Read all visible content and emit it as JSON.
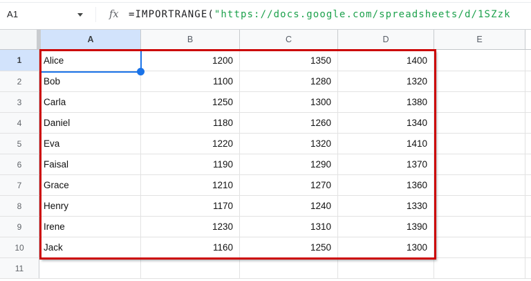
{
  "formula_bar": {
    "cell_reference": "A1",
    "fx_label": "fx",
    "formula_prefix": "=IMPORTRANGE(",
    "formula_string": "\"https://docs.google.com/spreadsheets/d/1SZzk"
  },
  "grid": {
    "column_headers": [
      "A",
      "B",
      "C",
      "D",
      "E"
    ],
    "selected_column": "A",
    "selected_row": "1",
    "selected_cell": "A1",
    "rows": [
      {
        "n": "1",
        "a": "Alice",
        "b": "1200",
        "c": "1350",
        "d": "1400"
      },
      {
        "n": "2",
        "a": "Bob",
        "b": "1100",
        "c": "1280",
        "d": "1320"
      },
      {
        "n": "3",
        "a": "Carla",
        "b": "1250",
        "c": "1300",
        "d": "1380"
      },
      {
        "n": "4",
        "a": "Daniel",
        "b": "1180",
        "c": "1260",
        "d": "1340"
      },
      {
        "n": "5",
        "a": "Eva",
        "b": "1220",
        "c": "1320",
        "d": "1410"
      },
      {
        "n": "6",
        "a": "Faisal",
        "b": "1190",
        "c": "1290",
        "d": "1370"
      },
      {
        "n": "7",
        "a": "Grace",
        "b": "1210",
        "c": "1270",
        "d": "1360"
      },
      {
        "n": "8",
        "a": "Henry",
        "b": "1170",
        "c": "1240",
        "d": "1330"
      },
      {
        "n": "9",
        "a": "Irene",
        "b": "1230",
        "c": "1310",
        "d": "1390"
      },
      {
        "n": "10",
        "a": "Jack",
        "b": "1160",
        "c": "1250",
        "d": "1300"
      },
      {
        "n": "11",
        "a": "",
        "b": "",
        "c": "",
        "d": ""
      }
    ]
  },
  "colors": {
    "range_border_red": "#cc0000",
    "selection_blue": "#1a73e8",
    "selected_header_bg": "#d2e3fc",
    "formula_string_green": "#1ca14c",
    "header_bg": "#f8f9fa"
  }
}
